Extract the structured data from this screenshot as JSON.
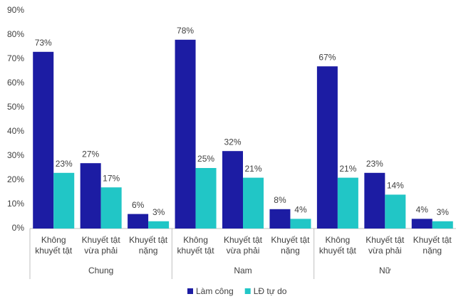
{
  "chart_data": {
    "type": "bar",
    "categories": [
      "Không khuyết tật",
      "Khuyết tật vừa phải",
      "Khuyết tật nặng",
      "Không khuyết tật",
      "Khuyết tật vừa phải",
      "Khuyết tật nặng",
      "Không khuyết tật",
      "Khuyết tật vừa phải",
      "Khuyết tật nặng"
    ],
    "groups": [
      "Chung",
      "Nam",
      "Nữ"
    ],
    "series": [
      {
        "name": "Làm công",
        "color": "#1c1ca3",
        "values": [
          73,
          27,
          6,
          78,
          32,
          8,
          67,
          23,
          4
        ],
        "value_labels": [
          "73%",
          "27%",
          "6%",
          "78%",
          "32%",
          "8%",
          "67%",
          "23%",
          "4%"
        ]
      },
      {
        "name": "LĐ tự do",
        "color": "#21c6c6",
        "values": [
          23,
          17,
          3,
          25,
          21,
          4,
          21,
          14,
          3
        ],
        "value_labels": [
          "23%",
          "17%",
          "3%",
          "25%",
          "21%",
          "4%",
          "21%",
          "14%",
          "3%"
        ]
      }
    ],
    "ylim": [
      0,
      90
    ],
    "yticks": [
      {
        "value": 0,
        "label": "0%"
      },
      {
        "value": 10,
        "label": "10%"
      },
      {
        "value": 20,
        "label": "20%"
      },
      {
        "value": 30,
        "label": "30%"
      },
      {
        "value": 40,
        "label": "40%"
      },
      {
        "value": 50,
        "label": "50%"
      },
      {
        "value": 60,
        "label": "60%"
      },
      {
        "value": 70,
        "label": "70%"
      },
      {
        "value": 80,
        "label": "80%"
      },
      {
        "value": 90,
        "label": "90%"
      }
    ],
    "grid": false,
    "legend": "bottom"
  }
}
